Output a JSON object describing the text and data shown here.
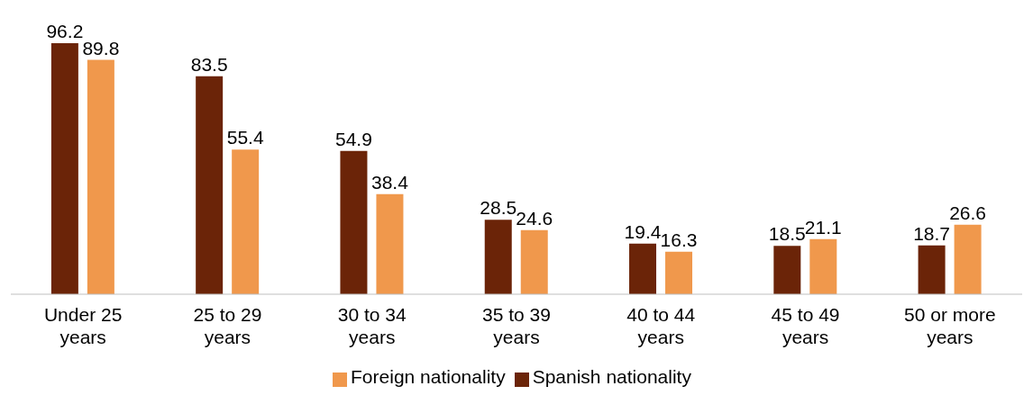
{
  "chart_data": {
    "type": "bar",
    "categories": [
      "Under 25 years",
      "25 to 29 years",
      "30 to 34 years",
      "35 to 39 years",
      "40 to 44 years",
      "45 to 49 years",
      "50 or more years"
    ],
    "series": [
      {
        "name": "Spanish nationality",
        "color": "#6b2408",
        "values": [
          96.2,
          83.5,
          54.9,
          28.5,
          19.4,
          18.5,
          18.7
        ]
      },
      {
        "name": "Foreign nationality",
        "color": "#f0984c",
        "values": [
          89.8,
          55.4,
          38.4,
          24.6,
          16.3,
          21.1,
          26.6
        ]
      }
    ],
    "data_labels": true,
    "legend": "bottom",
    "grid": false
  }
}
